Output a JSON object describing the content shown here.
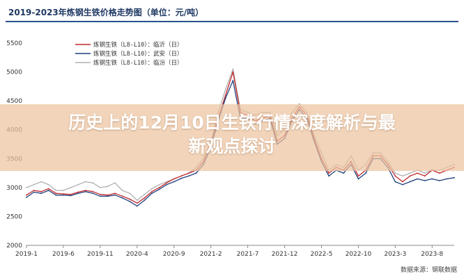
{
  "chart_data": {
    "type": "line",
    "title": "2019-2023年炼钢生铁价格走势图（单位：元/吨）",
    "source": "数据来源：钢联数据",
    "ylim": [
      2000,
      5500
    ],
    "yticks": [
      "2000",
      "2500",
      "3000",
      "3500",
      "4000",
      "4500",
      "5000",
      "5500"
    ],
    "x_ticks": [
      "2019-1",
      "2019-6",
      "2019-11",
      "2020-4",
      "2020-9",
      "2021-2",
      "2021-7",
      "2021-12",
      "2022-5",
      "2022-10",
      "2023-3",
      "2023-8"
    ],
    "x_range": [
      "2019-01",
      "2023-11"
    ],
    "grid": false,
    "legend_position": "top-left",
    "series": [
      {
        "name": "炼钢生铁（L8-L10）：临沂（日）",
        "color": "#c0272d",
        "x": [
          "2019-01",
          "2019-02",
          "2019-03",
          "2019-04",
          "2019-05",
          "2019-06",
          "2019-07",
          "2019-08",
          "2019-09",
          "2019-10",
          "2019-11",
          "2019-12",
          "2020-01",
          "2020-02",
          "2020-03",
          "2020-04",
          "2020-05",
          "2020-06",
          "2020-07",
          "2020-08",
          "2020-09",
          "2020-10",
          "2020-11",
          "2020-12",
          "2021-01",
          "2021-02",
          "2021-03",
          "2021-04",
          "2021-05",
          "2021-06",
          "2021-07",
          "2021-08",
          "2021-09",
          "2021-10",
          "2021-11",
          "2021-12",
          "2022-01",
          "2022-02",
          "2022-03",
          "2022-04",
          "2022-05",
          "2022-06",
          "2022-07",
          "2022-08",
          "2022-09",
          "2022-10",
          "2022-11",
          "2022-12",
          "2023-01",
          "2023-02",
          "2023-03",
          "2023-04",
          "2023-05",
          "2023-06",
          "2023-07",
          "2023-08",
          "2023-09",
          "2023-10",
          "2023-11"
        ],
        "values": [
          2870,
          2950,
          2930,
          2980,
          2900,
          2890,
          2880,
          2920,
          2950,
          2930,
          2880,
          2870,
          2900,
          2850,
          2800,
          2730,
          2820,
          2930,
          3000,
          3080,
          3150,
          3200,
          3250,
          3300,
          3450,
          3750,
          4200,
          4600,
          5000,
          4300,
          4250,
          4150,
          4200,
          4250,
          3800,
          3900,
          4200,
          4400,
          4250,
          3850,
          3500,
          3250,
          3350,
          3300,
          3450,
          3200,
          3300,
          3550,
          3550,
          3400,
          3200,
          3100,
          3200,
          3250,
          3200,
          3300,
          3250,
          3300,
          3350
        ]
      },
      {
        "name": "炼钢生铁（L8-L10）：武安（日）",
        "color": "#1f3f7a",
        "x": [
          "2019-01",
          "2019-02",
          "2019-03",
          "2019-04",
          "2019-05",
          "2019-06",
          "2019-07",
          "2019-08",
          "2019-09",
          "2019-10",
          "2019-11",
          "2019-12",
          "2020-01",
          "2020-02",
          "2020-03",
          "2020-04",
          "2020-05",
          "2020-06",
          "2020-07",
          "2020-08",
          "2020-09",
          "2020-10",
          "2020-11",
          "2020-12",
          "2021-01",
          "2021-02",
          "2021-03",
          "2021-04",
          "2021-05",
          "2021-06",
          "2021-07",
          "2021-08",
          "2021-09",
          "2021-10",
          "2021-11",
          "2021-12",
          "2022-01",
          "2022-02",
          "2022-03",
          "2022-04",
          "2022-05",
          "2022-06",
          "2022-07",
          "2022-08",
          "2022-09",
          "2022-10",
          "2022-11",
          "2022-12",
          "2023-01",
          "2023-02",
          "2023-03",
          "2023-04",
          "2023-05",
          "2023-06",
          "2023-07",
          "2023-08",
          "2023-09",
          "2023-10",
          "2023-11"
        ],
        "values": [
          2830,
          2920,
          2900,
          2950,
          2870,
          2870,
          2860,
          2900,
          2930,
          2900,
          2850,
          2850,
          2870,
          2820,
          2760,
          2680,
          2780,
          2900,
          2970,
          3050,
          3100,
          3160,
          3200,
          3250,
          3400,
          3700,
          4150,
          4550,
          4850,
          4200,
          4200,
          4100,
          4150,
          4200,
          3750,
          3850,
          4150,
          4350,
          4200,
          3800,
          3450,
          3200,
          3300,
          3250,
          3400,
          3150,
          3250,
          3500,
          3500,
          3350,
          3100,
          3050,
          3100,
          3150,
          3120,
          3150,
          3120,
          3150,
          3170
        ]
      },
      {
        "name": "炼钢生铁（L8-L10）：临汾（日）",
        "color": "#b0b0b0",
        "x": [
          "2019-01",
          "2019-02",
          "2019-03",
          "2019-04",
          "2019-05",
          "2019-06",
          "2019-07",
          "2019-08",
          "2019-09",
          "2019-10",
          "2019-11",
          "2019-12",
          "2020-01",
          "2020-02",
          "2020-03",
          "2020-04",
          "2020-05",
          "2020-06",
          "2020-07",
          "2020-08",
          "2020-09",
          "2020-10",
          "2020-11",
          "2020-12",
          "2021-01",
          "2021-02",
          "2021-03",
          "2021-04",
          "2021-05",
          "2021-06",
          "2021-07",
          "2021-08",
          "2021-09",
          "2021-10",
          "2021-11",
          "2021-12",
          "2022-01",
          "2022-02",
          "2022-03",
          "2022-04",
          "2022-05",
          "2022-06",
          "2022-07",
          "2022-08",
          "2022-09",
          "2022-10",
          "2022-11",
          "2022-12",
          "2023-01",
          "2023-02",
          "2023-03",
          "2023-04",
          "2023-05",
          "2023-06",
          "2023-07",
          "2023-08",
          "2023-09",
          "2023-10",
          "2023-11"
        ],
        "values": [
          3000,
          3050,
          3100,
          3050,
          2950,
          2950,
          3000,
          3050,
          3100,
          3080,
          3000,
          3020,
          3080,
          2950,
          2900,
          2780,
          2880,
          2980,
          3050,
          3100,
          3150,
          3200,
          3250,
          3350,
          3500,
          3800,
          4300,
          4700,
          5050,
          4350,
          4300,
          4250,
          4300,
          4300,
          3900,
          4000,
          4300,
          4450,
          4300,
          3900,
          3600,
          3300,
          3400,
          3350,
          3550,
          3300,
          3400,
          3600,
          3600,
          3450,
          3250,
          3200,
          3250,
          3300,
          3250,
          3300,
          3300,
          3350,
          3400
        ]
      }
    ]
  },
  "overlay": {
    "line1": "历史上的12月10日生铁行情深度解析与最",
    "line2": "新观点探讨"
  }
}
